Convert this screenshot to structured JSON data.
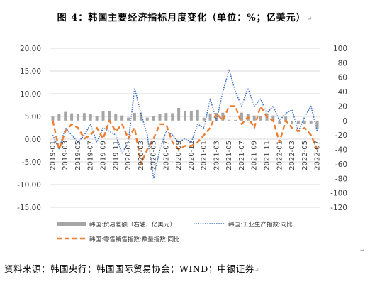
{
  "title": "图 4：韩国主要经济指标月度变化（单位：%；亿美元）",
  "source": "资料来源：韩国央行；韩国国际贸易协会；WIND；中银证券",
  "chart_data": {
    "type": "bar+line",
    "title": "",
    "left_axis": {
      "range": [
        -15,
        20
      ],
      "ticks": [
        "20.00",
        "15.00",
        "10.00",
        "5.00",
        "0.00",
        "-5.00",
        "-10.00",
        "-15.00"
      ]
    },
    "right_axis": {
      "range": [
        -120,
        100
      ],
      "ticks": [
        "100",
        "80",
        "60",
        "40",
        "20",
        "0",
        "-20",
        "-40",
        "-60",
        "-80",
        "-100",
        "-120"
      ]
    },
    "x_labels": [
      "2019-01",
      "2019-03",
      "2019-05",
      "2019-07",
      "2019-09",
      "2019-11",
      "2020-01",
      "2020-03",
      "2020-05",
      "2020-07",
      "2020-09",
      "2020-11",
      "2021-01",
      "2021-03",
      "2021-05",
      "2021-07",
      "2021-09",
      "2021-11",
      "2022-01",
      "2022-03",
      "2022-05",
      "2022-07"
    ],
    "months": [
      "2019-01",
      "2019-02",
      "2019-03",
      "2019-04",
      "2019-05",
      "2019-06",
      "2019-07",
      "2019-08",
      "2019-09",
      "2019-10",
      "2019-11",
      "2019-12",
      "2020-01",
      "2020-02",
      "2020-03",
      "2020-04",
      "2020-05",
      "2020-06",
      "2020-07",
      "2020-08",
      "2020-09",
      "2020-10",
      "2020-11",
      "2020-12",
      "2021-01",
      "2021-02",
      "2021-03",
      "2021-04",
      "2021-05",
      "2021-06",
      "2021-07",
      "2021-08",
      "2021-09",
      "2021-10",
      "2021-11",
      "2021-12",
      "2022-01",
      "2022-02",
      "2022-03",
      "2022-04",
      "2022-05",
      "2022-06",
      "2022-07"
    ],
    "series": [
      {
        "name": "韩国:贸易差额（右轴，亿美元）",
        "type": "bar",
        "axis": "right",
        "color": "#a6a6a6",
        "values": [
          5.5,
          8.6,
          12,
          10,
          9,
          10.4,
          8.6,
          6.3,
          13.5,
          13,
          9.2,
          7.1,
          4.2,
          10.7,
          11.1,
          4.2,
          6,
          9.5,
          10.5,
          10.3,
          17.5,
          13,
          13.5,
          14.7,
          4,
          9.8,
          10.5,
          10.9,
          1,
          0.9,
          11,
          9.5,
          7,
          6.3,
          8.7,
          7,
          -5,
          5.5,
          -5,
          -4.5,
          -4.3,
          -4,
          -11
        ]
      },
      {
        "name": "韩国:工业生产指数:同比",
        "type": "line",
        "axis": "right",
        "style": "dotted",
        "color": "#4472c4",
        "values": [
          -20,
          -40,
          -10,
          -20,
          -30,
          -20,
          -5,
          -30,
          -10,
          -15,
          -20,
          -45,
          -30,
          45,
          10,
          -20,
          -80,
          -40,
          -15,
          -20,
          -30,
          -25,
          -30,
          -5,
          -10,
          30,
          0,
          40,
          70,
          40,
          20,
          45,
          20,
          30,
          10,
          20,
          0,
          10,
          15,
          -15,
          5,
          20,
          -15
        ]
      },
      {
        "name": "韩国:零售销售指数:数量指数:同比",
        "type": "line",
        "axis": "right",
        "style": "dashed",
        "color": "#ed7d31",
        "values": [
          0,
          -40,
          -15,
          -5,
          -10,
          -25,
          -20,
          -10,
          -25,
          0,
          -15,
          -5,
          -25,
          -10,
          -60,
          -40,
          -25,
          -5,
          -5,
          -30,
          -40,
          -35,
          -35,
          -30,
          -20,
          -10,
          10,
          0,
          20,
          20,
          -5,
          5,
          -10,
          20,
          5,
          0,
          -30,
          0,
          -10,
          -15,
          -10,
          -20,
          -40
        ]
      }
    ],
    "legend": [
      {
        "label": "韩国:贸易差额（右轴，亿美元）",
        "kind": "bar",
        "color": "#a6a6a6"
      },
      {
        "label": "韩国:工业生产指数:同比",
        "kind": "dotted",
        "color": "#4472c4"
      },
      {
        "label": "韩国:零售销售指数:数量指数:同比",
        "kind": "dashed",
        "color": "#ed7d31"
      }
    ],
    "legend_position": "bottom",
    "grid": true
  }
}
